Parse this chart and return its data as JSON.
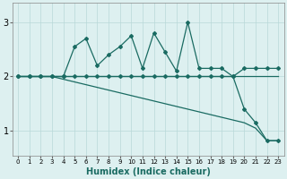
{
  "xlabel": "Humidex (Indice chaleur)",
  "bg_color": "#ddf0f0",
  "line_color": "#1a6b62",
  "grid_color": "#b8d8d8",
  "xlim": [
    -0.5,
    23.5
  ],
  "ylim": [
    0.55,
    3.35
  ],
  "xticks": [
    0,
    1,
    2,
    3,
    4,
    5,
    6,
    7,
    8,
    9,
    10,
    11,
    12,
    13,
    14,
    15,
    16,
    17,
    18,
    19,
    20,
    21,
    22,
    23
  ],
  "yticks": [
    1,
    2,
    3
  ],
  "line1_x": [
    0,
    1,
    2,
    3,
    4,
    5,
    6,
    7,
    8,
    9,
    10,
    11,
    12,
    13,
    14,
    15,
    16,
    17,
    18,
    19,
    20,
    21,
    22,
    23
  ],
  "line1_y": [
    2.0,
    2.0,
    2.0,
    2.0,
    2.0,
    2.0,
    2.0,
    2.0,
    2.0,
    2.0,
    2.0,
    2.0,
    2.0,
    2.0,
    2.0,
    2.0,
    2.0,
    2.0,
    2.0,
    2.0,
    2.0,
    2.0,
    2.0,
    2.0
  ],
  "line2_x": [
    0,
    1,
    2,
    3,
    4,
    5,
    6,
    7,
    8,
    9,
    10,
    11,
    12,
    13,
    14,
    15,
    16,
    17,
    18,
    19,
    20,
    21,
    22,
    23
  ],
  "line2_y": [
    2.0,
    2.0,
    2.0,
    2.0,
    2.0,
    2.55,
    2.7,
    2.2,
    2.4,
    2.55,
    2.75,
    2.15,
    2.8,
    2.45,
    2.1,
    3.0,
    2.15,
    2.15,
    2.15,
    2.0,
    2.15,
    2.15,
    2.15,
    2.15
  ],
  "line3_x": [
    0,
    1,
    2,
    3,
    4,
    5,
    6,
    7,
    8,
    9,
    10,
    11,
    12,
    13,
    14,
    15,
    16,
    17,
    18,
    19,
    20,
    21,
    22,
    23
  ],
  "line3_y": [
    2.0,
    2.0,
    2.0,
    2.0,
    2.0,
    2.0,
    2.0,
    2.0,
    2.0,
    2.0,
    2.0,
    2.0,
    2.0,
    2.0,
    2.0,
    2.0,
    2.0,
    2.0,
    2.0,
    2.0,
    1.4,
    1.15,
    0.82,
    0.82
  ],
  "line4_x": [
    0,
    1,
    2,
    3,
    4,
    5,
    6,
    7,
    8,
    9,
    10,
    11,
    12,
    13,
    14,
    15,
    16,
    17,
    18,
    19,
    20,
    21,
    22,
    23
  ],
  "line4_y": [
    2.0,
    2.0,
    2.0,
    2.0,
    1.95,
    1.9,
    1.85,
    1.8,
    1.75,
    1.7,
    1.65,
    1.6,
    1.55,
    1.5,
    1.45,
    1.4,
    1.35,
    1.3,
    1.25,
    1.2,
    1.15,
    1.05,
    0.82,
    0.82
  ]
}
